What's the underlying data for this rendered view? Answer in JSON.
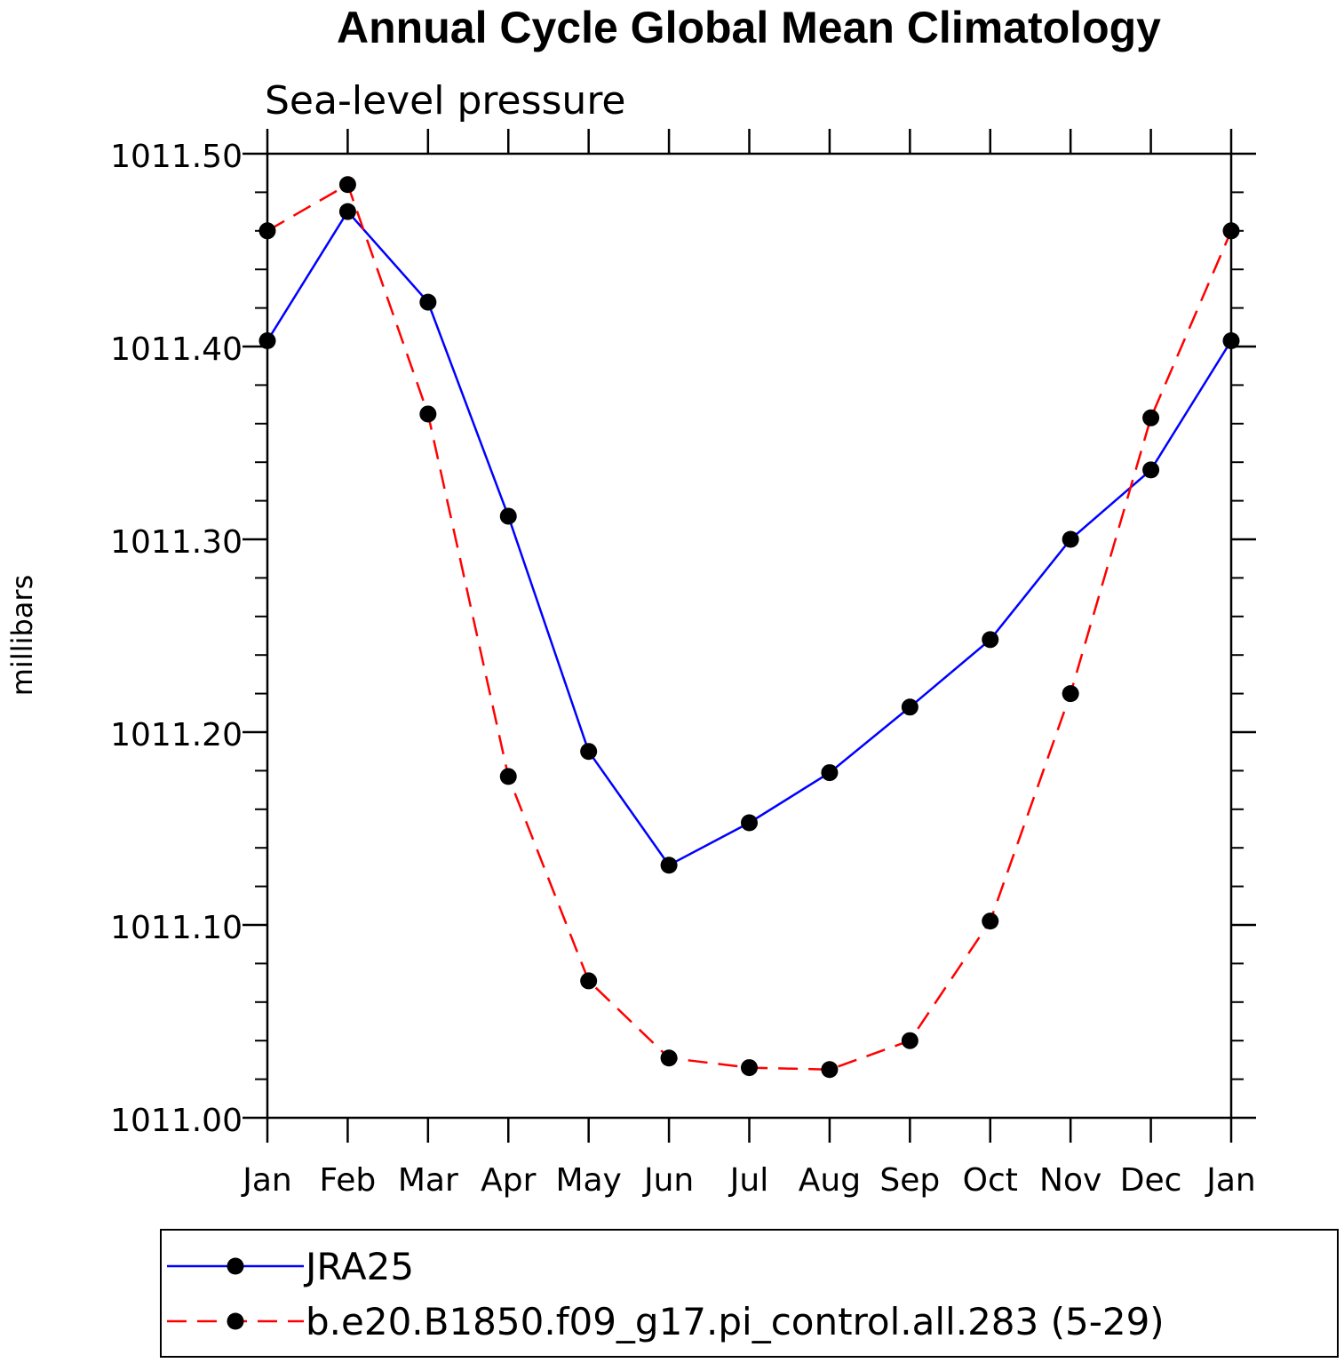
{
  "chart_data": {
    "type": "line",
    "title": "Annual Cycle Global Mean Climatology",
    "subtitle": "Sea-level pressure",
    "ylabel": "millibars",
    "xlabel": "",
    "categories": [
      "Jan",
      "Feb",
      "Mar",
      "Apr",
      "May",
      "Jun",
      "Jul",
      "Aug",
      "Sep",
      "Oct",
      "Nov",
      "Dec",
      "Jan"
    ],
    "ylim": [
      1011.0,
      1011.5
    ],
    "yticks": [
      "1011.00",
      "1011.10",
      "1011.20",
      "1011.30",
      "1011.40",
      "1011.50"
    ],
    "grid": false,
    "legend_position": "bottom",
    "series": [
      {
        "name": "JRA25",
        "color": "#0000ff",
        "style": "solid",
        "marker": "filled-circle",
        "values": [
          1011.403,
          1011.47,
          1011.423,
          1011.312,
          1011.19,
          1011.131,
          1011.153,
          1011.179,
          1011.213,
          1011.248,
          1011.3,
          1011.336,
          1011.403
        ]
      },
      {
        "name": "b.e20.B1850.f09_g17.pi_control.all.283 (5-29)",
        "color": "#ff0000",
        "style": "dashed",
        "marker": "filled-circle",
        "values": [
          1011.46,
          1011.484,
          1011.365,
          1011.177,
          1011.071,
          1011.031,
          1011.026,
          1011.025,
          1011.04,
          1011.102,
          1011.22,
          1011.363,
          1011.46
        ]
      }
    ]
  }
}
